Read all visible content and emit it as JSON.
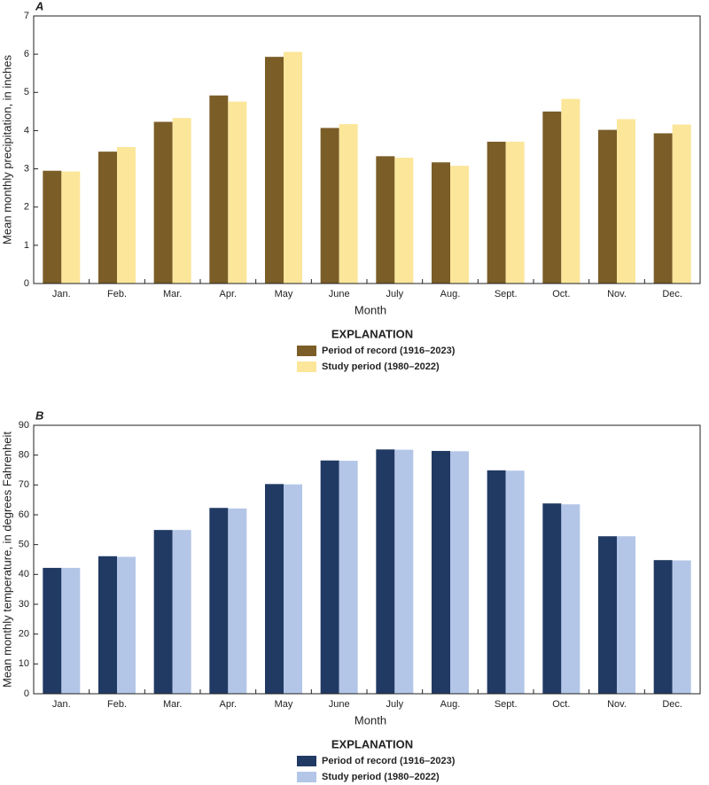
{
  "chart_data": [
    {
      "type": "bar",
      "panel_label": "A",
      "y_label": "Mean monthly precipitation, in inches",
      "x_label": "Month",
      "legend_title": "EXPLANATION",
      "categories": [
        "Jan.",
        "Feb.",
        "Mar.",
        "Apr.",
        "May",
        "June",
        "July",
        "Aug.",
        "Sept.",
        "Oct.",
        "Nov.",
        "Dec."
      ],
      "series": [
        {
          "name": "Period of record (1916–2023)",
          "color": "#7b5d27",
          "values": [
            2.95,
            3.45,
            4.23,
            4.92,
            5.93,
            4.07,
            3.33,
            3.17,
            3.71,
            4.5,
            4.02,
            3.93
          ]
        },
        {
          "name": "Study period (1980–2022)",
          "color": "#fbe69a",
          "values": [
            2.93,
            3.57,
            4.33,
            4.76,
            6.06,
            4.17,
            3.29,
            3.08,
            3.71,
            4.83,
            4.3,
            4.16
          ]
        }
      ],
      "ylim": [
        0,
        7
      ],
      "yticks": [
        0,
        1,
        2,
        3,
        4,
        5,
        6,
        7
      ],
      "grid": false
    },
    {
      "type": "bar",
      "panel_label": "B",
      "y_label": "Mean monthly temperature, in degrees Fahrenheit",
      "x_label": "Month",
      "legend_title": "EXPLANATION",
      "categories": [
        "Jan.",
        "Feb.",
        "Mar.",
        "Apr.",
        "May",
        "June",
        "July",
        "Aug.",
        "Sept.",
        "Oct.",
        "Nov.",
        "Dec."
      ],
      "series": [
        {
          "name": "Period of record (1916–2023)",
          "color": "#213a64",
          "values": [
            42.2,
            46.1,
            54.9,
            62.3,
            70.3,
            78.2,
            81.9,
            81.4,
            74.9,
            63.8,
            52.8,
            44.8
          ]
        },
        {
          "name": "Study period (1980–2022)",
          "color": "#b3c6e7",
          "values": [
            42.2,
            45.9,
            54.9,
            62.1,
            70.2,
            78.1,
            81.8,
            81.3,
            74.8,
            63.5,
            52.8,
            44.7
          ]
        }
      ],
      "ylim": [
        0,
        90
      ],
      "yticks": [
        0,
        10,
        20,
        30,
        40,
        50,
        60,
        70,
        80,
        90
      ],
      "grid": false
    }
  ]
}
